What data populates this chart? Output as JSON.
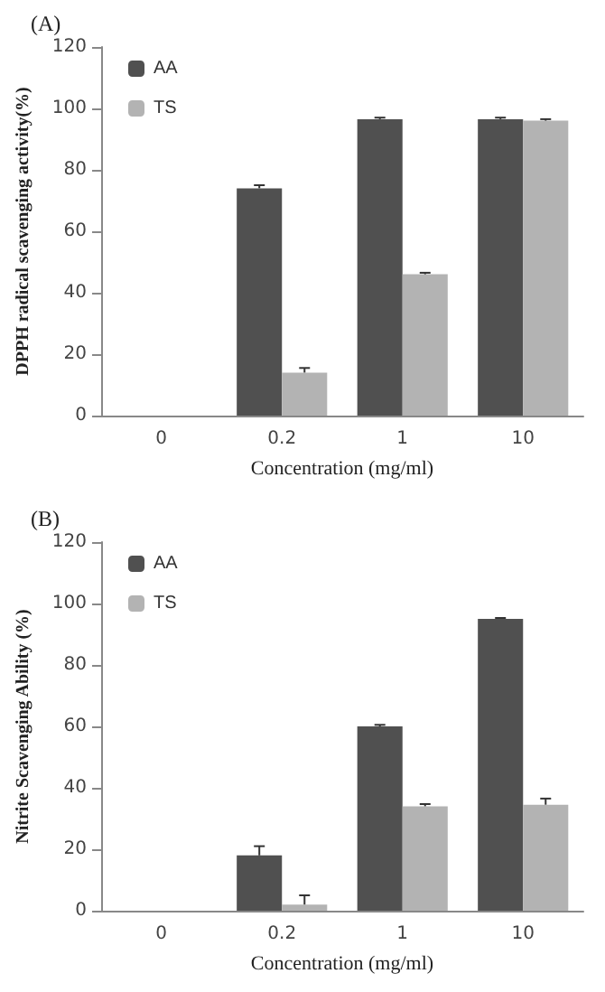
{
  "chart_data": [
    {
      "type": "bar",
      "title": "(A)",
      "xlabel": "Concentration (mg/ml)",
      "ylabel": "DPPH radical scavenging activity(%)",
      "categories": [
        "0",
        "0.2",
        "1",
        "10"
      ],
      "series": [
        {
          "name": "AA",
          "color": "#505050",
          "values": [
            0,
            74,
            96.5,
            96.5
          ],
          "errors": [
            null,
            [
              74,
              75
            ],
            [
              96.5,
              97
            ],
            [
              96.5,
              97
            ]
          ]
        },
        {
          "name": "TS",
          "color": "#b3b3b3",
          "values": [
            0,
            14,
            46,
            96
          ],
          "errors": [
            null,
            [
              14,
              15.5
            ],
            [
              46,
              46.5
            ],
            [
              96,
              96.5
            ]
          ]
        }
      ],
      "ylim": [
        0,
        120
      ],
      "yticks": [
        0,
        20,
        40,
        60,
        80,
        100,
        120
      ],
      "grid": false,
      "legend": "top left"
    },
    {
      "type": "bar",
      "title": "(B)",
      "xlabel": "Concentration (mg/ml)",
      "ylabel": "Nitrite Scavenging Ability (%)",
      "categories": [
        "0",
        "0.2",
        "1",
        "10"
      ],
      "series": [
        {
          "name": "AA",
          "color": "#505050",
          "values": [
            0,
            18,
            60,
            95
          ],
          "errors": [
            null,
            [
              18,
              21
            ],
            [
              60,
              60.5
            ],
            [
              95,
              95.3
            ]
          ]
        },
        {
          "name": "TS",
          "color": "#b3b3b3",
          "values": [
            0,
            2,
            34,
            34.5
          ],
          "errors": [
            null,
            [
              2,
              5
            ],
            [
              34,
              34.7
            ],
            [
              34.5,
              36.5
            ]
          ]
        }
      ],
      "ylim": [
        0,
        120
      ],
      "yticks": [
        0,
        20,
        40,
        60,
        80,
        100,
        120
      ],
      "grid": false,
      "legend": "top left"
    }
  ]
}
